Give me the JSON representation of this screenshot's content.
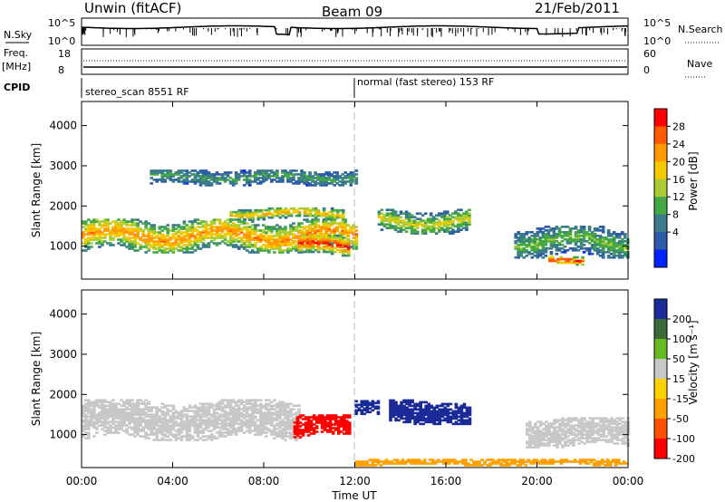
{
  "header": {
    "station": "Unwin (fitACF)",
    "beam": "Beam 09",
    "date": "21/Feb/2011"
  },
  "panels": {
    "noise": {
      "left_label": "N.Sky",
      "right_label": "N.Search",
      "left_ticks": [
        "10^5",
        "10^0"
      ],
      "right_ticks": [
        "10^5",
        "10^0"
      ]
    },
    "freq": {
      "left_label_1": "Freq.",
      "left_label_2": "[MHz]",
      "right_label": "Nave",
      "left_ticks": [
        "18",
        "8"
      ],
      "right_ticks": [
        "60",
        "0"
      ]
    },
    "cpid": {
      "label": "CPID",
      "segments": [
        "stereo_scan 8551 RF",
        "normal (fast stereo) 153 RF"
      ]
    }
  },
  "power_colorbar": {
    "title": "Power [dB]",
    "ticks": [
      "28",
      "24",
      "20",
      "16",
      "12",
      "8",
      "4"
    ],
    "colors": [
      "#ff0000",
      "#ff5a00",
      "#ff9a00",
      "#f5c800",
      "#aacc33",
      "#44a844",
      "#3a7a8a",
      "#2a5aa8",
      "#0022ff"
    ]
  },
  "velocity_colorbar": {
    "title": "Velocity [m s⁻¹]",
    "ticks": [
      "200",
      "100",
      "50",
      "15",
      "-15",
      "-50",
      "-100",
      "-200"
    ],
    "colors": [
      "#1a2a99",
      "#3a6a3a",
      "#66bb22",
      "#c8c8c8",
      "#ffd000",
      "#ffa000",
      "#ff5000",
      "#ff0000"
    ]
  },
  "chart_data": {
    "type": "heatmap",
    "xlabel": "Time UT",
    "ylabel": "Slant Range [km]",
    "x_ticks": [
      "00:00",
      "04:00",
      "08:00",
      "12:00",
      "16:00",
      "20:00",
      "00:00"
    ],
    "x_range_hours": [
      0,
      24
    ],
    "ylim": [
      180,
      4600
    ],
    "y_ticks": [
      1000,
      2000,
      3000,
      4000
    ],
    "cpid_change_hour": 12.0,
    "power_regions": [
      {
        "t0": 0.0,
        "t1": 12.0,
        "r_center": 1250,
        "r_halfwidth": 420,
        "peak_db": 22
      },
      {
        "t0": 9.5,
        "t1": 11.7,
        "r_center": 1000,
        "r_halfwidth": 250,
        "peak_db": 28
      },
      {
        "t0": 6.5,
        "t1": 11.5,
        "r_center": 1800,
        "r_halfwidth": 150,
        "peak_db": 20
      },
      {
        "t0": 3.0,
        "t1": 12.0,
        "r_center": 2700,
        "r_halfwidth": 200,
        "peak_db": 10
      },
      {
        "t0": 13.0,
        "t1": 17.0,
        "r_center": 1600,
        "r_halfwidth": 300,
        "peak_db": 16
      },
      {
        "t0": 19.0,
        "t1": 24.0,
        "r_center": 1100,
        "r_halfwidth": 400,
        "peak_db": 12
      },
      {
        "t0": 20.5,
        "t1": 22.0,
        "r_center": 600,
        "r_halfwidth": 120,
        "peak_db": 28
      }
    ],
    "velocity_regions": [
      {
        "t0": 0.0,
        "t1": 9.5,
        "r_center": 1350,
        "r_halfwidth": 500,
        "velocity": 0
      },
      {
        "t0": 9.3,
        "t1": 11.8,
        "r_center": 1200,
        "r_halfwidth": 280,
        "velocity": -200
      },
      {
        "t0": 12.0,
        "t1": 13.0,
        "r_center": 1700,
        "r_halfwidth": 200,
        "velocity": 200
      },
      {
        "t0": 13.5,
        "t1": 17.0,
        "r_center": 1550,
        "r_halfwidth": 300,
        "velocity": 200
      },
      {
        "t0": 19.5,
        "t1": 24.0,
        "r_center": 1050,
        "r_halfwidth": 380,
        "velocity": 0
      },
      {
        "t0": 12.0,
        "t1": 24.0,
        "r_center": 300,
        "r_halfwidth": 80,
        "velocity": -50
      }
    ]
  }
}
